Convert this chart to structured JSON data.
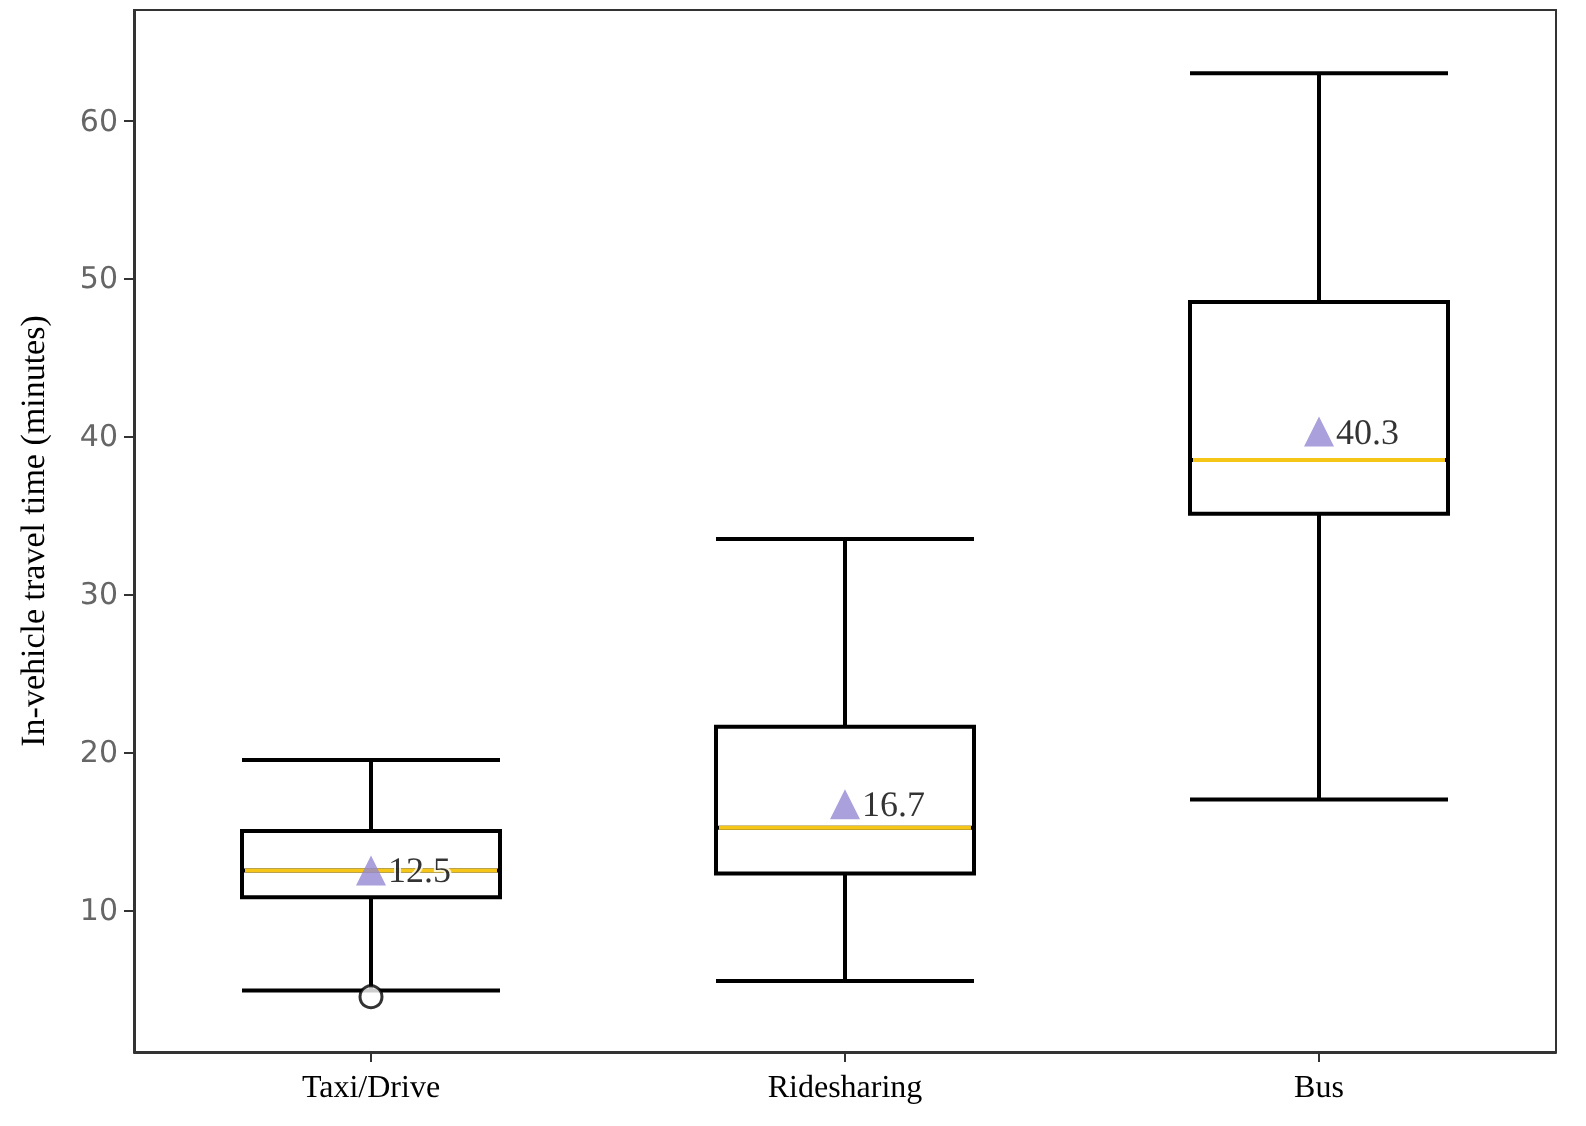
{
  "chart_data": {
    "type": "box",
    "ylabel": "In-vehicle travel time (minutes)",
    "categories": [
      "Taxi/Drive",
      "Ridesharing",
      "Bus"
    ],
    "color": "#000000",
    "boxes": [
      {
        "low": 4.9,
        "q1": 10.8,
        "median": 12.5,
        "q3": 15.0,
        "high": 19.5,
        "outliers": [
          4.5
        ]
      },
      {
        "low": 5.5,
        "q1": 12.3,
        "median": 15.2,
        "q3": 21.6,
        "high": 33.5
      },
      {
        "low": 17.0,
        "q1": 35.1,
        "median": 38.5,
        "q3": 48.5,
        "high": 63.0
      }
    ],
    "series": [
      {
        "type": "scatter",
        "color": "#9488d3",
        "x": [
          "Taxi/Drive",
          "Ridesharing",
          "Bus"
        ],
        "values": [
          12.5,
          16.7,
          40.3
        ]
      }
    ],
    "ylim": [
      1,
      67
    ],
    "yticks": [
      10,
      20,
      30,
      40,
      50,
      60
    ],
    "grid": false,
    "legend": false,
    "data_labels": true,
    "marker": "triangle"
  }
}
